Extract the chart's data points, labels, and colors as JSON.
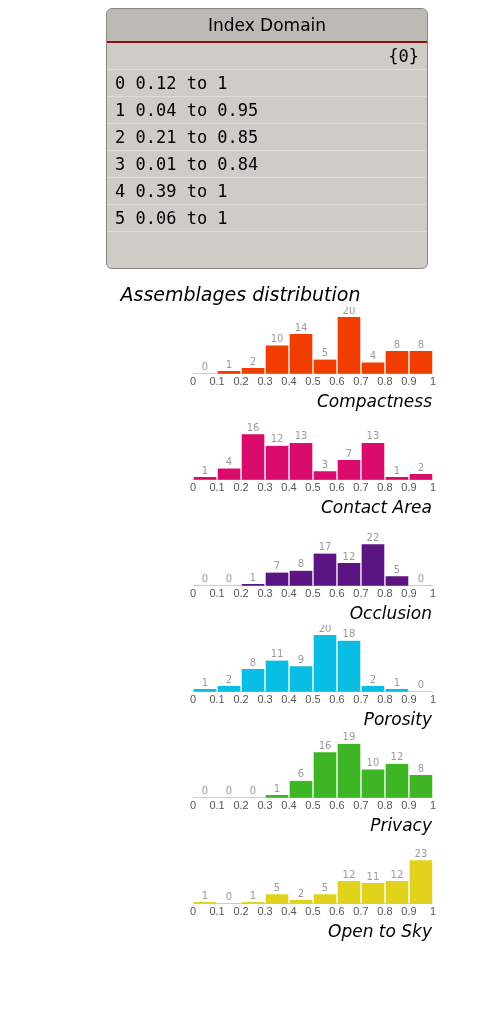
{
  "chart_data": [
    {
      "type": "other",
      "title": "Index Domain",
      "annotations": [
        "{0}",
        "0 0.12 to 1",
        "1 0.04 to 0.95",
        "2 0.21 to 0.85",
        "3 0.01 to 0.84",
        "4 0.39 to 1",
        "5 0.06 to 1"
      ]
    },
    {
      "type": "bar",
      "title": "Assemblages distribution",
      "xlabel": "Compactness",
      "x": [
        0.05,
        0.15,
        0.25,
        0.35,
        0.45,
        0.55,
        0.65,
        0.75,
        0.85,
        0.95
      ],
      "values": [
        0,
        1,
        2,
        10,
        14,
        5,
        20,
        4,
        8,
        8
      ],
      "color": "#f23d00",
      "data_labels": true,
      "xlim": [
        0,
        1
      ],
      "xticks": [
        0,
        0.1,
        0.2,
        0.3,
        0.4,
        0.5,
        0.6,
        0.7,
        0.8,
        0.9,
        1
      ],
      "legend": false
    },
    {
      "type": "bar",
      "xlabel": "Contact Area",
      "x": [
        0.05,
        0.15,
        0.25,
        0.35,
        0.45,
        0.55,
        0.65,
        0.75,
        0.85,
        0.95
      ],
      "values": [
        1,
        4,
        16,
        12,
        13,
        3,
        7,
        13,
        1,
        2
      ],
      "color": "#d90b6c",
      "data_labels": true,
      "xlim": [
        0,
        1
      ],
      "xticks": [
        0,
        0.1,
        0.2,
        0.3,
        0.4,
        0.5,
        0.6,
        0.7,
        0.8,
        0.9,
        1
      ],
      "legend": false
    },
    {
      "type": "bar",
      "xlabel": "Occlusion",
      "x": [
        0.05,
        0.15,
        0.25,
        0.35,
        0.45,
        0.55,
        0.65,
        0.75,
        0.85,
        0.95
      ],
      "values": [
        0,
        0,
        1,
        7,
        8,
        17,
        12,
        22,
        5,
        0
      ],
      "color": "#5b1481",
      "data_labels": true,
      "xlim": [
        0,
        1
      ],
      "xticks": [
        0,
        0.1,
        0.2,
        0.3,
        0.4,
        0.5,
        0.6,
        0.7,
        0.8,
        0.9,
        1
      ],
      "legend": false
    },
    {
      "type": "bar",
      "xlabel": "Porosity",
      "x": [
        0.05,
        0.15,
        0.25,
        0.35,
        0.45,
        0.55,
        0.65,
        0.75,
        0.85,
        0.95
      ],
      "values": [
        1,
        2,
        8,
        11,
        9,
        20,
        18,
        2,
        1,
        0
      ],
      "color": "#0abde2",
      "data_labels": true,
      "xlim": [
        0,
        1
      ],
      "xticks": [
        0,
        0.1,
        0.2,
        0.3,
        0.4,
        0.5,
        0.6,
        0.7,
        0.8,
        0.9,
        1
      ],
      "legend": false
    },
    {
      "type": "bar",
      "xlabel": "Privacy",
      "x": [
        0.05,
        0.15,
        0.25,
        0.35,
        0.45,
        0.55,
        0.65,
        0.75,
        0.85,
        0.95
      ],
      "values": [
        0,
        0,
        0,
        1,
        6,
        16,
        19,
        10,
        12,
        8
      ],
      "color": "#3db524",
      "data_labels": true,
      "xlim": [
        0,
        1
      ],
      "xticks": [
        0,
        0.1,
        0.2,
        0.3,
        0.4,
        0.5,
        0.6,
        0.7,
        0.8,
        0.9,
        1
      ],
      "legend": false
    },
    {
      "type": "bar",
      "xlabel": "Open to Sky",
      "x": [
        0.05,
        0.15,
        0.25,
        0.35,
        0.45,
        0.55,
        0.65,
        0.75,
        0.85,
        0.95
      ],
      "values": [
        1,
        0,
        1,
        5,
        2,
        5,
        12,
        11,
        12,
        23
      ],
      "color": "#e1d31c",
      "data_labels": true,
      "xlim": [
        0,
        1
      ],
      "xticks": [
        0,
        0.1,
        0.2,
        0.3,
        0.4,
        0.5,
        0.6,
        0.7,
        0.8,
        0.9,
        1
      ],
      "legend": false
    }
  ]
}
